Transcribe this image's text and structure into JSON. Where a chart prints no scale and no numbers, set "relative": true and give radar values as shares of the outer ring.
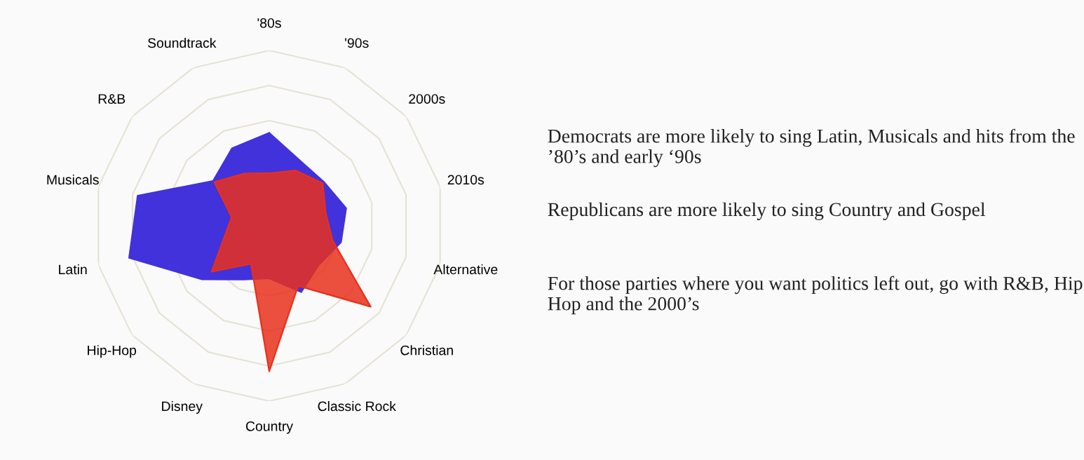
{
  "chart_data": {
    "type": "radar",
    "relative": true,
    "grid": true,
    "categories": [
      "'80s",
      "'90s",
      "2000s",
      "2010s",
      "Alternative",
      "Christian",
      "Classic Rock",
      "Country",
      "Disney",
      "Hip-Hop",
      "Latin",
      "Musicals",
      "R&B",
      "Soundtrack"
    ],
    "series": [
      {
        "color": "#4232dc",
        "values": [
          0.53,
          0.41,
          0.4,
          0.45,
          0.42,
          0.36,
          0.42,
          0.3,
          0.34,
          0.49,
          0.82,
          0.77,
          0.41,
          0.49
        ]
      },
      {
        "color": "#e8301c",
        "values": [
          0.3,
          0.35,
          0.39,
          0.33,
          0.37,
          0.74,
          0.38,
          0.83,
          0.24,
          0.42,
          0.26,
          0.22,
          0.4,
          0.33
        ]
      }
    ],
    "annotations": [
      "Democrats are more likely to sing Latin, Musicals and hits from the ’80’s and early ‘90s",
      "Republicans are more likely to sing Country and Gospel",
      "For those parties where you want politics left out, go with R&B, Hip Hop and the 2000’s"
    ]
  }
}
